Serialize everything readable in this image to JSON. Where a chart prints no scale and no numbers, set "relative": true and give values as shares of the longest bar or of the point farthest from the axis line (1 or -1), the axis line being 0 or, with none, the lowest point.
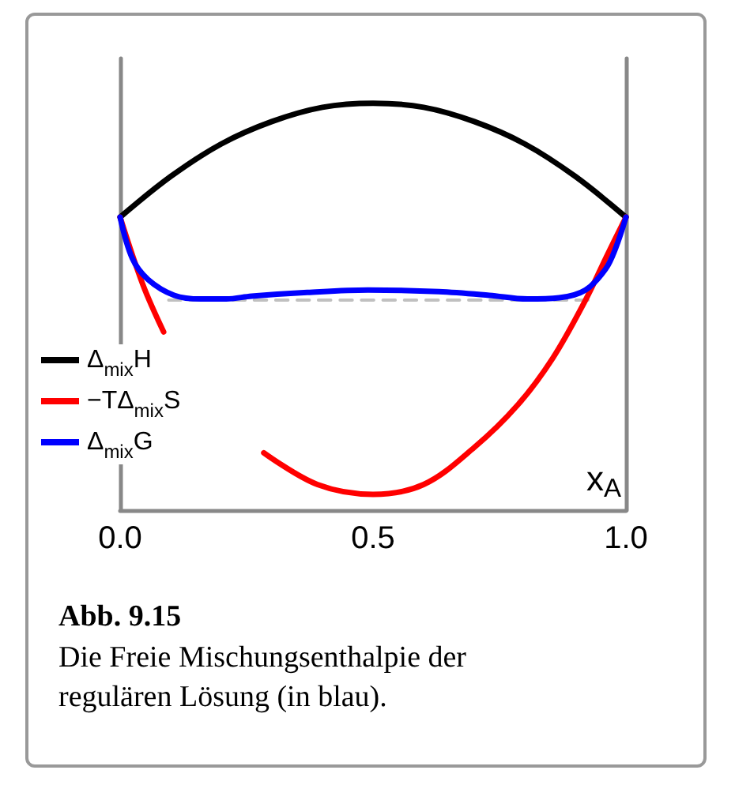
{
  "chart_data": {
    "type": "line",
    "title": "Abb. 9.15",
    "subtitle": "Die Freie Mischungsenthalpie der regulären Lösung (in blau).",
    "xlabel": "x$_{A}$",
    "relative": true,
    "xlim": [
      0,
      1
    ],
    "xticks": [
      {
        "value": 0,
        "label": "0.0"
      },
      {
        "value": 0.5,
        "label": "0.5"
      },
      {
        "value": 1,
        "label": "1.0"
      }
    ],
    "grid": false,
    "legend": "left",
    "marker": "none",
    "line_style": "solid",
    "series": [
      {
        "name": "Δ$_{mix}$H",
        "color": "#000000",
        "x": [
          0,
          0.1,
          0.2,
          0.3,
          0.4,
          0.5,
          0.6,
          0.7,
          0.8,
          0.9,
          1
        ],
        "values": [
          0.72,
          0.82,
          0.9,
          0.955,
          0.99,
          1,
          0.99,
          0.955,
          0.9,
          0.82,
          0.72
        ]
      },
      {
        "name": "−TΔ$_{mix}$S",
        "color": "#ff0000",
        "x": [
          0,
          0.045,
          0.086,
          0.15,
          0.284,
          0.39,
          0.5,
          0.6,
          0.7,
          0.785,
          0.855,
          0.92,
          0.96,
          1
        ],
        "values": [
          0.72,
          0.554,
          0.438,
          null,
          0.141,
          0.063,
          0.039,
          0.063,
          0.154,
          0.257,
          0.373,
          0.516,
          0.619,
          0.72
        ]
      },
      {
        "name": "Δ$_{mix}$G",
        "color": "#0000ff",
        "x": [
          0,
          0.024,
          0.055,
          0.107,
          0.16,
          0.21,
          0.26,
          0.37,
          0.49,
          0.63,
          0.73,
          0.805,
          0.868,
          0.92,
          0.96,
          0.98,
          1
        ],
        "values": [
          0.72,
          0.619,
          0.567,
          0.528,
          0.519,
          0.519,
          0.526,
          0.535,
          0.541,
          0.537,
          0.528,
          0.519,
          0.522,
          0.541,
          0.593,
          0.645,
          0.72
        ]
      },
      {
        "color": "#c0c0c0",
        "line_style": "dashed",
        "x": [
          0.096,
          0.925
        ],
        "values": [
          0.516,
          0.516
        ]
      }
    ]
  }
}
